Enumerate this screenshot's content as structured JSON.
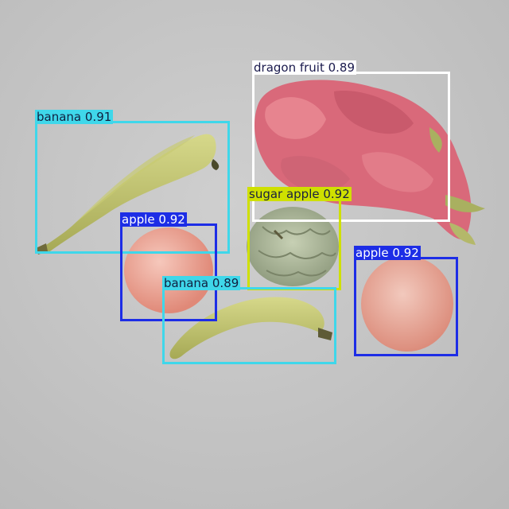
{
  "detections": [
    {
      "label": "dragon fruit 0.89",
      "box_color": "#ffffff",
      "label_bg": "#ffffff",
      "label_fg": "#1a1a4d"
    },
    {
      "label": "banana 0.91",
      "box_color": "#3fd7ea",
      "label_bg": "#3fd7ea",
      "label_fg": "#102040"
    },
    {
      "label": "sugar apple 0.92",
      "box_color": "#cfe000",
      "label_bg": "#cfe000",
      "label_fg": "#1a2040"
    },
    {
      "label": "apple 0.92",
      "box_color": "#1d2de6",
      "label_bg": "#1d2de6",
      "label_fg": "#ffffff"
    },
    {
      "label": "banana 0.89",
      "box_color": "#3fd7ea",
      "label_bg": "#3fd7ea",
      "label_fg": "#102040"
    },
    {
      "label": "apple 0.92",
      "box_color": "#1d2de6",
      "label_bg": "#1d2de6",
      "label_fg": "#ffffff"
    }
  ]
}
